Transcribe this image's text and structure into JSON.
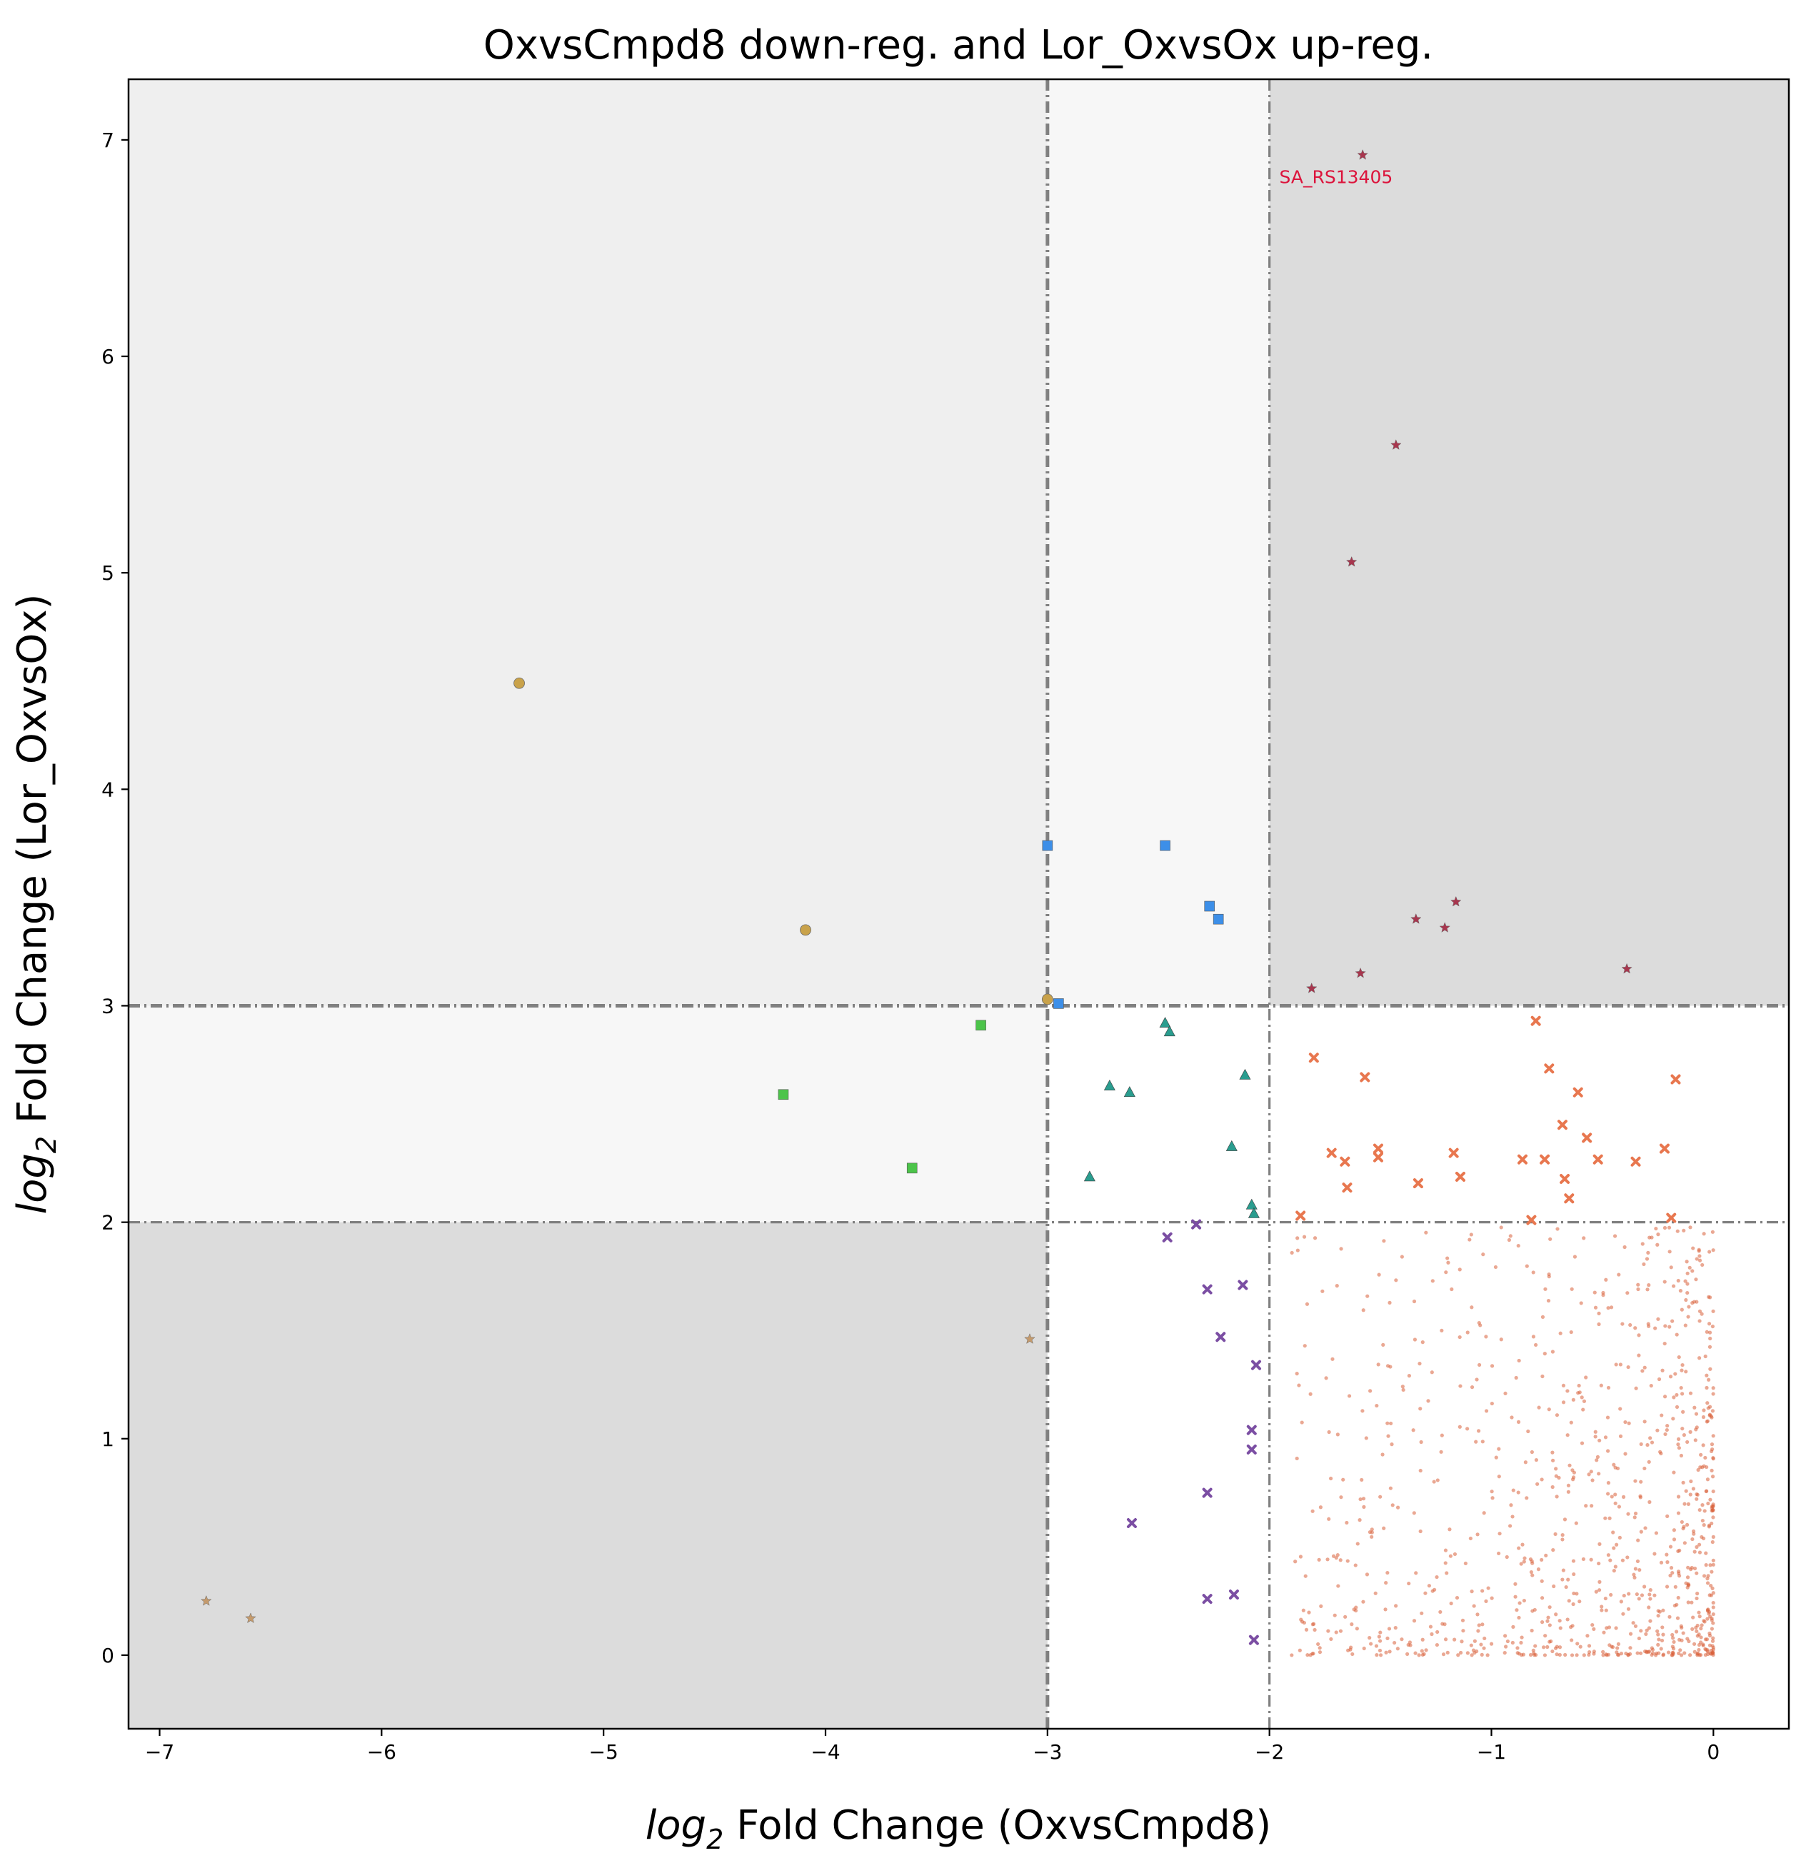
{
  "chart_data": {
    "type": "scatter",
    "title": "OxvsCmpd8 down-reg. and Lor_OxvsOx up-reg.",
    "xlabel_prefix": "log",
    "xlabel_sub": "2",
    "xlabel_rest": " Fold Change (OxvsCmpd8)",
    "ylabel_prefix": "log",
    "ylabel_sub": "2",
    "ylabel_rest": " Fold Change (Lor_OxvsOx)",
    "xlim": [
      -7.14,
      0.34
    ],
    "ylim": [
      -0.34,
      7.28
    ],
    "xticks": [
      -7,
      -6,
      -5,
      -4,
      -3,
      -2,
      -1,
      0
    ],
    "yticks": [
      0,
      1,
      2,
      3,
      4,
      5,
      6,
      7
    ],
    "xtick_labels": [
      "−7",
      "−6",
      "−5",
      "−4",
      "−3",
      "−2",
      "−1",
      "0"
    ],
    "ytick_labels": [
      "0",
      "1",
      "2",
      "3",
      "4",
      "5",
      "6",
      "7"
    ],
    "thresholds": {
      "x": [
        -3,
        -2
      ],
      "y": [
        2,
        3
      ]
    },
    "regions": [
      {
        "x": [
          -7.14,
          -3
        ],
        "y": [
          3,
          7.28
        ],
        "color": "#efefef"
      },
      {
        "x": [
          -3,
          -2
        ],
        "y": [
          3,
          7.28
        ],
        "color": "#f7f7f7"
      },
      {
        "x": [
          -2,
          0.34
        ],
        "y": [
          3,
          7.28
        ],
        "color": "#dcdcdc"
      },
      {
        "x": [
          -7.14,
          -3
        ],
        "y": [
          2,
          3
        ],
        "color": "#f7f7f7"
      },
      {
        "x": [
          -7.14,
          -3
        ],
        "y": [
          -0.34,
          2
        ],
        "color": "#dcdcdc"
      }
    ],
    "annotation": {
      "text": "SA_RS13405",
      "x": -1.7,
      "y": 6.83,
      "color": "#dc143c"
    },
    "groups": [
      {
        "marker": "circle",
        "color": "#c9a24a",
        "points": [
          [
            -5.38,
            4.49
          ],
          [
            -4.09,
            3.35
          ],
          [
            -3.0,
            3.03
          ]
        ]
      },
      {
        "marker": "square",
        "color": "#3d8fe8",
        "points": [
          [
            -3.0,
            3.74
          ],
          [
            -2.47,
            3.74
          ],
          [
            -2.27,
            3.46
          ],
          [
            -2.23,
            3.4
          ],
          [
            -2.95,
            3.01
          ]
        ]
      },
      {
        "marker": "square",
        "color": "#4cc44a",
        "points": [
          [
            -3.3,
            2.91
          ],
          [
            -4.19,
            2.59
          ],
          [
            -3.61,
            2.25
          ]
        ]
      },
      {
        "marker": "triangle",
        "color": "#2a9d8f",
        "points": [
          [
            -2.47,
            2.92
          ],
          [
            -2.45,
            2.88
          ],
          [
            -2.11,
            2.68
          ],
          [
            -2.72,
            2.63
          ],
          [
            -2.63,
            2.6
          ],
          [
            -2.17,
            2.35
          ],
          [
            -2.81,
            2.21
          ],
          [
            -2.08,
            2.08
          ],
          [
            -2.07,
            2.04
          ]
        ]
      },
      {
        "marker": "star",
        "color": "#a8364e",
        "points": [
          [
            -1.58,
            6.93
          ],
          [
            -1.43,
            5.59
          ],
          [
            -1.63,
            5.05
          ],
          [
            -1.16,
            3.48
          ],
          [
            -1.34,
            3.4
          ],
          [
            -1.21,
            3.36
          ],
          [
            -0.39,
            3.17
          ],
          [
            -1.59,
            3.15
          ],
          [
            -1.81,
            3.08
          ]
        ]
      },
      {
        "marker": "x",
        "color": "#e8774f",
        "points": [
          [
            -0.8,
            2.93
          ],
          [
            -1.8,
            2.76
          ],
          [
            -0.74,
            2.71
          ],
          [
            -1.57,
            2.67
          ],
          [
            -0.17,
            2.66
          ],
          [
            -0.61,
            2.6
          ],
          [
            -0.68,
            2.45
          ],
          [
            -0.57,
            2.39
          ],
          [
            -1.51,
            2.34
          ],
          [
            -0.22,
            2.34
          ],
          [
            -1.72,
            2.32
          ],
          [
            -1.17,
            2.32
          ],
          [
            -1.51,
            2.3
          ],
          [
            -0.86,
            2.29
          ],
          [
            -0.76,
            2.29
          ],
          [
            -0.52,
            2.29
          ],
          [
            -0.35,
            2.28
          ],
          [
            -1.66,
            2.28
          ],
          [
            -1.14,
            2.21
          ],
          [
            -0.67,
            2.2
          ],
          [
            -1.33,
            2.18
          ],
          [
            -1.65,
            2.16
          ],
          [
            -0.65,
            2.11
          ],
          [
            -1.86,
            2.03
          ],
          [
            -0.82,
            2.01
          ],
          [
            -0.19,
            2.02
          ]
        ]
      },
      {
        "marker": "x",
        "color": "#7b4ea3",
        "points": [
          [
            -2.33,
            1.99
          ],
          [
            -2.46,
            1.93
          ],
          [
            -2.12,
            1.71
          ],
          [
            -2.28,
            1.69
          ],
          [
            -2.22,
            1.47
          ],
          [
            -2.06,
            1.34
          ],
          [
            -2.08,
            1.04
          ],
          [
            -2.08,
            0.95
          ],
          [
            -2.28,
            0.75
          ],
          [
            -2.62,
            0.61
          ],
          [
            -2.16,
            0.28
          ],
          [
            -2.28,
            0.26
          ],
          [
            -2.07,
            0.07
          ]
        ]
      },
      {
        "marker": "star",
        "color": "#c49a6c",
        "points": [
          [
            -3.08,
            1.46
          ],
          [
            -6.79,
            0.25
          ],
          [
            -6.59,
            0.17
          ]
        ]
      }
    ]
  }
}
